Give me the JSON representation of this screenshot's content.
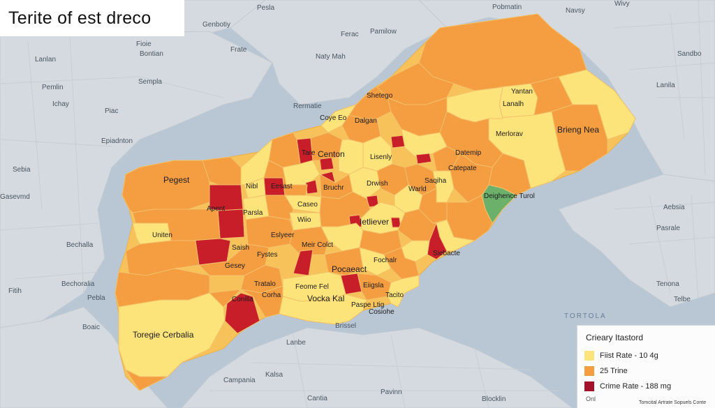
{
  "title": "Terite of est dreco",
  "colors": {
    "water": "#b9c6d3",
    "land": "#d5dbe1",
    "low": "#fde47a",
    "mid": "#f59d41",
    "high": "#c81e2a",
    "green": "#6cb16b"
  },
  "base_labels": [
    "Pobmatin",
    "Pesla",
    "Genbotiy",
    "Fioie",
    "Pamilow",
    "Navsy",
    "Ferac",
    "Wivy",
    "Frate",
    "Bontian",
    "Naty Mah",
    "Lanlan",
    "Sempla",
    "Sandbo",
    "Piac",
    "Ichay",
    "Epiadnton",
    "Sebia",
    "Bechalla",
    "Rermatie",
    "Gasevmd",
    "Bechoralia",
    "Fitih",
    "Lanila",
    "Pasrale",
    "Brissel",
    "Lanbe",
    "Tenona",
    "Telbe",
    "Pavinn",
    "Campania",
    "Kalsa",
    "Cantia",
    "Blocklin",
    "Aebsia",
    "Pemlin",
    "Pebla",
    "Boaic"
  ],
  "water_label": "TORTOLA",
  "districts": [
    "Shetego",
    "Coye Eo",
    "Dalgan",
    "Yantan",
    "Lanalh",
    "Merlorav",
    "Brieng Nea",
    "Pegest",
    "Tare",
    "Centon",
    "Lisenly",
    "Datemip",
    "Catepate",
    "Apent",
    "Nibl",
    "Eesast",
    "Bruchr",
    "Drwish",
    "Warld",
    "Saqiha",
    "Deighence Turol",
    "Parsla",
    "Eslyeer",
    "Ietliever",
    "Wiio",
    "Caseo",
    "Uniten",
    "Saish",
    "Fystes",
    "Meir Colct",
    "Siebacte",
    "Gesey",
    "Pocaeact",
    "Fochalr",
    "Tratalo",
    "Feome Fel",
    "Eiigsla",
    "Tacito",
    "Conilla",
    "Corha",
    "Vocka Kal",
    "Paspe Ltig",
    "Cosiohe",
    "Toregie Cerbalia"
  ],
  "legend": {
    "title": "Crieary Itastord",
    "items": [
      {
        "label": "Fiist Rate - 10 4g",
        "color": "#fde47a"
      },
      {
        "label": "25 Trine",
        "color": "#f59d41"
      },
      {
        "label": "Crime Rate - 188 mg",
        "color": "#a3112a"
      }
    ],
    "footnote": "Onl"
  },
  "credit": "Tomcital Artrate Sopuels Conte"
}
